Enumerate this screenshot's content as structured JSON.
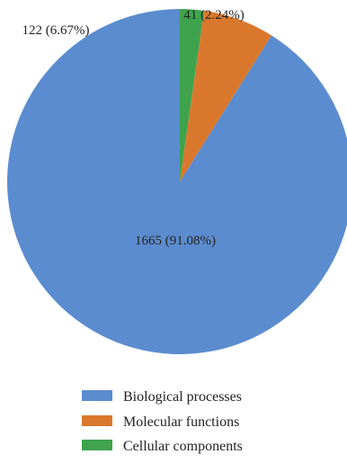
{
  "chart_data": {
    "type": "pie",
    "slices": [
      {
        "label": "Biological processes",
        "value": 1665,
        "percent": "91.08%",
        "data_label": "1665 (91.08%)",
        "color": "#5b8ccf"
      },
      {
        "label": "Molecular functions",
        "value": 122,
        "percent": "6.67%",
        "data_label": "122 (6.67%)",
        "color": "#d9782d"
      },
      {
        "label": "Cellular components",
        "value": 41,
        "percent": "2.24%",
        "data_label": "41 (2.24%)",
        "color": "#3fa34d"
      }
    ],
    "start_angle_deg": 0,
    "direction": "counter-clockwise",
    "legend_placement": "bottom",
    "title": ""
  }
}
